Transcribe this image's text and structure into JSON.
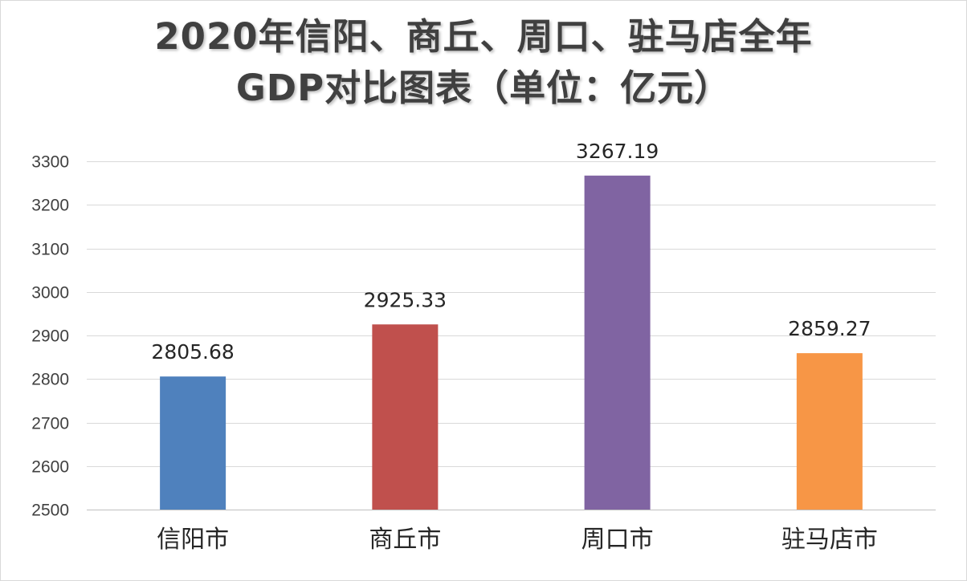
{
  "chart_data": {
    "type": "bar",
    "title_lines": [
      "2020年信阳、商丘、周口、驻马店全年",
      "GDP对比图表（单位：亿元）"
    ],
    "categories": [
      "信阳市",
      "商丘市",
      "周口市",
      "驻马店市"
    ],
    "values": [
      2805.68,
      2925.33,
      3267.19,
      2859.27
    ],
    "value_labels": [
      "2805.68",
      "2925.33",
      "3267.19",
      "2859.27"
    ],
    "colors": [
      "#4f81bd",
      "#c0504d",
      "#8064a2",
      "#f79646"
    ],
    "ylim": [
      2500,
      3300
    ],
    "yticks": [
      2500,
      2600,
      2700,
      2800,
      2900,
      3000,
      3100,
      3200,
      3300
    ],
    "grid": true,
    "legend": "none",
    "xlabel": "",
    "ylabel": ""
  }
}
